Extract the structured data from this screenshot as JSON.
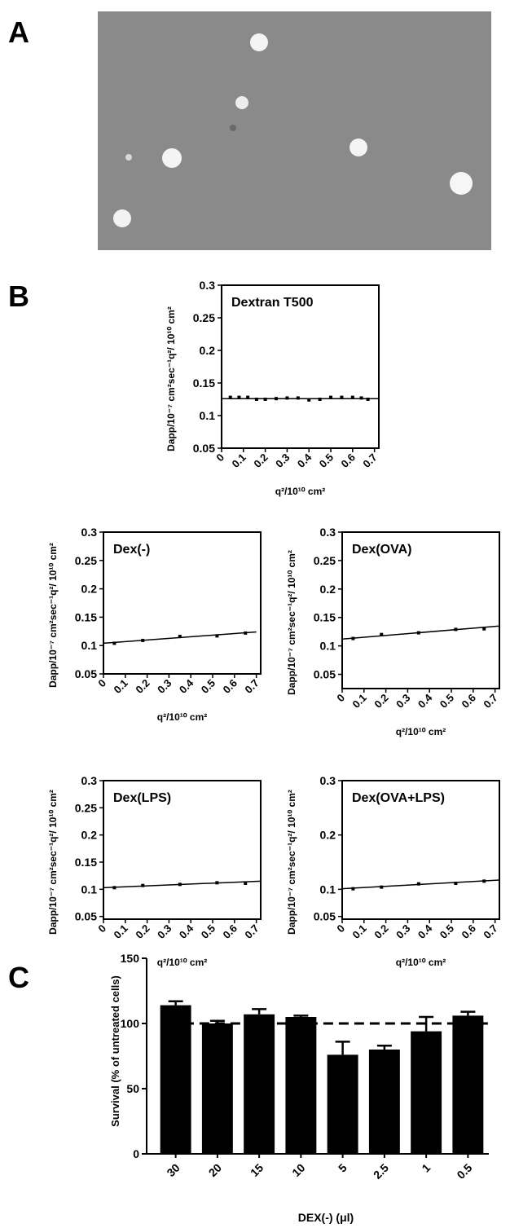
{
  "panel_labels": [
    "A",
    "B",
    "C"
  ],
  "chart_data": [
    {
      "type": "scatter",
      "title": "Dextran T500",
      "x_label": "q²/10¹⁰ cm²",
      "y_label": "Dapp/10⁻⁷ cm²sec⁻¹q²/ 10¹⁰ cm²",
      "x": [
        0.04,
        0.08,
        0.12,
        0.16,
        0.2,
        0.25,
        0.3,
        0.35,
        0.4,
        0.45,
        0.5,
        0.55,
        0.6,
        0.64,
        0.67
      ],
      "values": [
        0.128,
        0.128,
        0.128,
        0.125,
        0.125,
        0.126,
        0.127,
        0.127,
        0.124,
        0.125,
        0.128,
        0.128,
        0.128,
        0.127,
        0.125
      ],
      "fit": {
        "x": [
          0,
          0.72
        ],
        "values": [
          0.126,
          0.126
        ]
      },
      "xlim": [
        0,
        0.72
      ],
      "ylim": [
        0.05,
        0.3
      ],
      "xticks": [
        0,
        0.1,
        0.2,
        0.3,
        0.4,
        0.5,
        0.6,
        0.7
      ],
      "yticks": [
        0.05,
        0.1,
        0.15,
        0.2,
        0.25,
        0.3
      ],
      "color": "#000000"
    },
    {
      "type": "scatter",
      "title": "Dex(-)",
      "x_label": "q²/10¹⁰ cm²",
      "y_label": "Dapp/10⁻⁷ cm²sec⁻¹q²/ 10¹⁰ cm²",
      "x": [
        0.05,
        0.18,
        0.35,
        0.52,
        0.65
      ],
      "values": [
        0.104,
        0.109,
        0.116,
        0.117,
        0.122
      ],
      "fit": {
        "x": [
          0,
          0.7
        ],
        "values": [
          0.104,
          0.124
        ]
      },
      "xlim": [
        0,
        0.72
      ],
      "ylim": [
        0.05,
        0.3
      ],
      "xticks": [
        0,
        0.1,
        0.2,
        0.3,
        0.4,
        0.5,
        0.6,
        0.7
      ],
      "yticks": [
        0.05,
        0.1,
        0.15,
        0.2,
        0.25,
        0.3
      ],
      "color": "#000000"
    },
    {
      "type": "scatter",
      "title": "Dex(OVA)",
      "x_label": "q²/10¹⁰ cm²",
      "y_label": "Dapp/10⁻⁷ cm²sec⁻¹q²/ 10¹⁰ cm²",
      "x": [
        0.05,
        0.18,
        0.35,
        0.52,
        0.65
      ],
      "values": [
        0.113,
        0.12,
        0.123,
        0.129,
        0.13
      ],
      "fit": {
        "x": [
          0,
          0.72
        ],
        "values": [
          0.112,
          0.135
        ]
      },
      "xlim": [
        0,
        0.72
      ],
      "ylim": [
        0.025,
        0.3
      ],
      "xticks": [
        0,
        0.1,
        0.2,
        0.3,
        0.4,
        0.5,
        0.6,
        0.7
      ],
      "yticks": [
        0.05,
        0.1,
        0.15,
        0.2,
        0.25,
        0.3
      ],
      "color": "#000000"
    },
    {
      "type": "scatter",
      "title": "Dex(LPS)",
      "x_label": "q²/10¹⁰ cm²",
      "y_label": "Dapp/10⁻⁷ cm²sec⁻¹q²/ 10¹⁰ cm²",
      "x": [
        0.05,
        0.18,
        0.35,
        0.52,
        0.65
      ],
      "values": [
        0.103,
        0.107,
        0.109,
        0.112,
        0.111
      ],
      "fit": {
        "x": [
          0,
          0.72
        ],
        "values": [
          0.103,
          0.115
        ]
      },
      "xlim": [
        0,
        0.72
      ],
      "ylim": [
        0.045,
        0.3
      ],
      "xticks": [
        0,
        0.1,
        0.2,
        0.3,
        0.4,
        0.5,
        0.6,
        0.7
      ],
      "yticks": [
        0.05,
        0.1,
        0.15,
        0.2,
        0.25,
        0.3
      ],
      "color": "#000000"
    },
    {
      "type": "scatter",
      "title": "Dex(OVA+LPS)",
      "x_label": "q²/10¹⁰ cm²",
      "y_label": "Dapp/10⁻⁷ cm²sec⁻¹q²/ 10¹⁰ cm²",
      "x": [
        0.05,
        0.18,
        0.35,
        0.52,
        0.65
      ],
      "values": [
        0.101,
        0.104,
        0.11,
        0.111,
        0.115
      ],
      "fit": {
        "x": [
          0,
          0.72
        ],
        "values": [
          0.101,
          0.117
        ]
      },
      "xlim": [
        0,
        0.72
      ],
      "ylim": [
        0.045,
        0.3
      ],
      "xticks": [
        0,
        0.1,
        0.2,
        0.3,
        0.4,
        0.5,
        0.6,
        0.7
      ],
      "yticks": [
        0.05,
        0.1,
        0.2,
        0.3
      ],
      "color": "#000000"
    },
    {
      "type": "bar",
      "x_label": "DEX(-) (μl)",
      "y_label": "Survival (% of untreated cells)",
      "categories": [
        "30",
        "20",
        "15",
        "10",
        "5",
        "2.5",
        "1",
        "0.5"
      ],
      "values": [
        114,
        100,
        107,
        105,
        76,
        80,
        94,
        106
      ],
      "errors": [
        3,
        2,
        4,
        1,
        10,
        3,
        11,
        3
      ],
      "reference_line": 100,
      "ylim": [
        0,
        150
      ],
      "yticks": [
        0,
        50,
        100,
        150
      ],
      "color": "#000000"
    }
  ]
}
